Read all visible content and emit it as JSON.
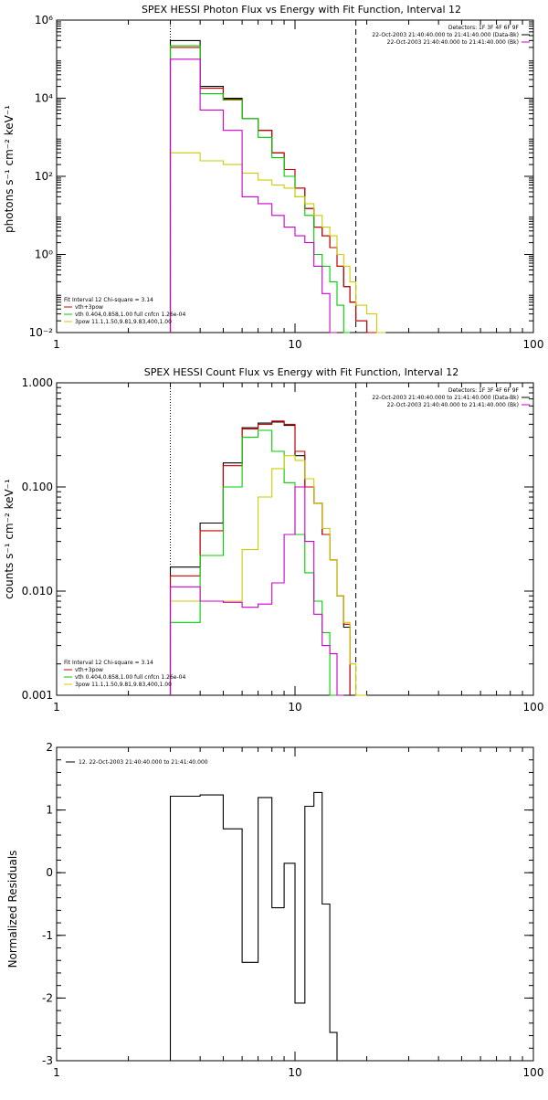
{
  "chart_data": [
    {
      "type": "line",
      "title": "SPEX HESSI Photon Flux vs Energy with Fit Function, Interval 12",
      "ylabel": "photons s⁻¹ cm⁻² keV⁻¹",
      "xlabel": "",
      "xscale": "log",
      "yscale": "log",
      "xlim": [
        1,
        100
      ],
      "ylim": [
        0.01,
        1000000
      ],
      "xticks": [
        {
          "v": 1,
          "label": "1"
        },
        {
          "v": 10,
          "label": "10"
        },
        {
          "v": 100,
          "label": "100"
        }
      ],
      "yticks": [
        {
          "v": 0.01,
          "label": "10⁻²"
        },
        {
          "v": 1,
          "label": "10⁰"
        },
        {
          "v": 100,
          "label": "10²"
        },
        {
          "v": 10000,
          "label": "10⁴"
        },
        {
          "v": 1000000,
          "label": "10⁶"
        }
      ],
      "legend_top_right": [
        {
          "text": "Detectors: 1F 3F 4F 6F 9F",
          "color": ""
        },
        {
          "text": "22-Oct-2003 21:40:40.000 to 21:41:40.000 (Data-Bk)",
          "color": "#000000"
        },
        {
          "text": "22-Oct-2003 21:40:40.000 to 21:41:40.000 (Bk)",
          "color": "#cc00cc"
        }
      ],
      "legend_bottom_left": [
        {
          "text": "Fit Interval 12   Chi-square = 3.14",
          "color": ""
        },
        {
          "text": "vth+3pow",
          "color": "#cc0000"
        },
        {
          "text": "vth 0.404,0.858,1.00  full cnfcn 1.26e-04",
          "color": "#00cc00"
        },
        {
          "text": "3pow 11.1,1.50,9.81,9.83,400,1.00",
          "color": "#cccc00"
        }
      ],
      "vlines": [
        {
          "x": 3,
          "style": "dotted"
        },
        {
          "x": 18,
          "style": "dashed"
        }
      ],
      "edges": [
        3,
        4,
        5,
        6,
        7,
        8,
        9,
        10,
        11,
        12,
        13,
        14,
        15,
        16,
        17,
        18,
        20,
        22,
        24
      ],
      "series": [
        {
          "name": "Data-Bk",
          "color": "#000000",
          "values": [
            300000,
            20000,
            10000,
            3000,
            1500,
            400,
            150,
            50,
            15,
            5,
            3,
            1.5,
            0.5,
            0.15,
            0.06,
            0.02,
            0.01,
            null
          ]
        },
        {
          "name": "vth+3pow",
          "color": "#cc0000",
          "values": [
            200000,
            18000,
            9500,
            3000,
            1500,
            400,
            150,
            50,
            15,
            5,
            3,
            1.5,
            0.5,
            0.15,
            0.06,
            0.02,
            0.01,
            null
          ]
        },
        {
          "name": "vth",
          "color": "#00cc00",
          "values": [
            220000,
            13000,
            9000,
            3000,
            1000,
            300,
            100,
            30,
            10,
            1,
            0.5,
            0.2,
            0.05,
            0.01,
            null,
            null,
            null,
            null
          ]
        },
        {
          "name": "3pow",
          "color": "#cccc00",
          "values": [
            400,
            250,
            200,
            120,
            80,
            60,
            50,
            30,
            20,
            10,
            5,
            3,
            1,
            0.5,
            0.2,
            0.05,
            0.03,
            0.01
          ]
        },
        {
          "name": "Bk",
          "color": "#cc00cc",
          "values": [
            100000,
            5000,
            1500,
            30,
            20,
            10,
            5,
            3,
            2,
            0.5,
            0.1,
            0.01,
            null,
            null,
            null,
            null,
            null,
            null
          ]
        }
      ]
    },
    {
      "type": "line",
      "title": "SPEX HESSI Count Flux vs Energy with Fit Function, Interval 12",
      "ylabel": "counts s⁻¹ cm⁻² keV⁻¹",
      "xlabel": "",
      "xscale": "log",
      "yscale": "log",
      "xlim": [
        1,
        100
      ],
      "ylim": [
        0.001,
        1
      ],
      "xticks": [
        {
          "v": 1,
          "label": "1"
        },
        {
          "v": 10,
          "label": "10"
        },
        {
          "v": 100,
          "label": "100"
        }
      ],
      "yticks": [
        {
          "v": 0.001,
          "label": "0.001"
        },
        {
          "v": 0.01,
          "label": "0.010"
        },
        {
          "v": 0.1,
          "label": "0.100"
        },
        {
          "v": 1,
          "label": "1.000"
        }
      ],
      "legend_top_right": [
        {
          "text": "Detectors: 1F 3F 4F 6F 9F",
          "color": ""
        },
        {
          "text": "22-Oct-2003 21:40:40.000 to 21:41:40.000 (Data-Bk)",
          "color": "#000000"
        },
        {
          "text": "22-Oct-2003 21:40:40.000 to 21:41:40.000 (Bk)",
          "color": "#cc00cc"
        }
      ],
      "legend_bottom_left": [
        {
          "text": "Fit Interval 12   Chi-square = 3.14",
          "color": ""
        },
        {
          "text": "vth+3pow",
          "color": "#cc0000"
        },
        {
          "text": "vth 0.404,0.858,1.00  full cnfcn 1.26e-04",
          "color": "#00cc00"
        },
        {
          "text": "3pow 11.1,1.50,9.81,9.83,400,1.00",
          "color": "#cccc00"
        }
      ],
      "vlines": [
        {
          "x": 3,
          "style": "dotted"
        },
        {
          "x": 18,
          "style": "dashed"
        }
      ],
      "edges": [
        3,
        4,
        5,
        6,
        7,
        8,
        9,
        10,
        11,
        12,
        13,
        14,
        15,
        16,
        17,
        18,
        20,
        22,
        24
      ],
      "series": [
        {
          "name": "Data-Bk",
          "color": "#000000",
          "values": [
            0.017,
            0.045,
            0.17,
            0.37,
            0.41,
            0.42,
            0.39,
            0.2,
            0.1,
            0.07,
            0.035,
            0.02,
            0.009,
            0.0045,
            null,
            null,
            null,
            null
          ]
        },
        {
          "name": "vth+3pow",
          "color": "#cc0000",
          "values": [
            0.014,
            0.038,
            0.16,
            0.36,
            0.4,
            0.43,
            0.4,
            0.22,
            0.1,
            0.07,
            0.035,
            0.02,
            0.009,
            0.0048,
            null,
            null,
            null,
            null
          ]
        },
        {
          "name": "vth",
          "color": "#00cc00",
          "values": [
            0.005,
            0.022,
            0.1,
            0.3,
            0.35,
            0.22,
            0.11,
            0.035,
            0.015,
            0.008,
            0.004,
            0.001,
            null,
            null,
            null,
            null,
            null,
            null
          ]
        },
        {
          "name": "3pow",
          "color": "#cccc00",
          "values": [
            0.008,
            0.008,
            0.008,
            0.025,
            0.08,
            0.15,
            0.2,
            0.18,
            0.12,
            0.07,
            0.04,
            0.02,
            0.009,
            0.005,
            0.002,
            0.001,
            null,
            null
          ]
        },
        {
          "name": "Bk",
          "color": "#cc00cc",
          "values": [
            0.011,
            0.008,
            0.0078,
            0.007,
            0.0075,
            0.012,
            0.035,
            0.1,
            0.03,
            0.006,
            0.003,
            0.0025,
            0.001,
            null,
            null,
            null,
            null,
            null
          ]
        }
      ]
    },
    {
      "type": "line",
      "title": "",
      "ylabel": "Normalized Residuals",
      "xlabel": "",
      "xscale": "log",
      "yscale": "linear",
      "xlim": [
        1,
        100
      ],
      "ylim": [
        -3,
        2
      ],
      "xticks": [
        {
          "v": 1,
          "label": "1"
        },
        {
          "v": 10,
          "label": "10"
        },
        {
          "v": 100,
          "label": "100"
        }
      ],
      "yticks": [
        {
          "v": -3,
          "label": "-3"
        },
        {
          "v": -2,
          "label": "-2"
        },
        {
          "v": -1,
          "label": "-1"
        },
        {
          "v": 0,
          "label": "0"
        },
        {
          "v": 1,
          "label": "1"
        },
        {
          "v": 2,
          "label": "2"
        }
      ],
      "legend_top_left": [
        {
          "text": "12. 22-Oct-2003 21:40:40.000 to 21:41:40.000",
          "color": "#000000"
        }
      ],
      "edges": [
        3,
        4,
        5,
        6,
        7,
        8,
        9,
        10,
        11,
        12,
        13,
        14,
        15,
        16,
        17,
        18,
        20
      ],
      "series": [
        {
          "name": "",
          "color": "#000000",
          "values": [
            1.22,
            1.24,
            0.7,
            -1.43,
            1.2,
            -0.56,
            0.15,
            -2.08,
            1.06,
            1.28,
            -0.5,
            -2.55,
            -3.2,
            null,
            null,
            null
          ]
        }
      ]
    }
  ]
}
